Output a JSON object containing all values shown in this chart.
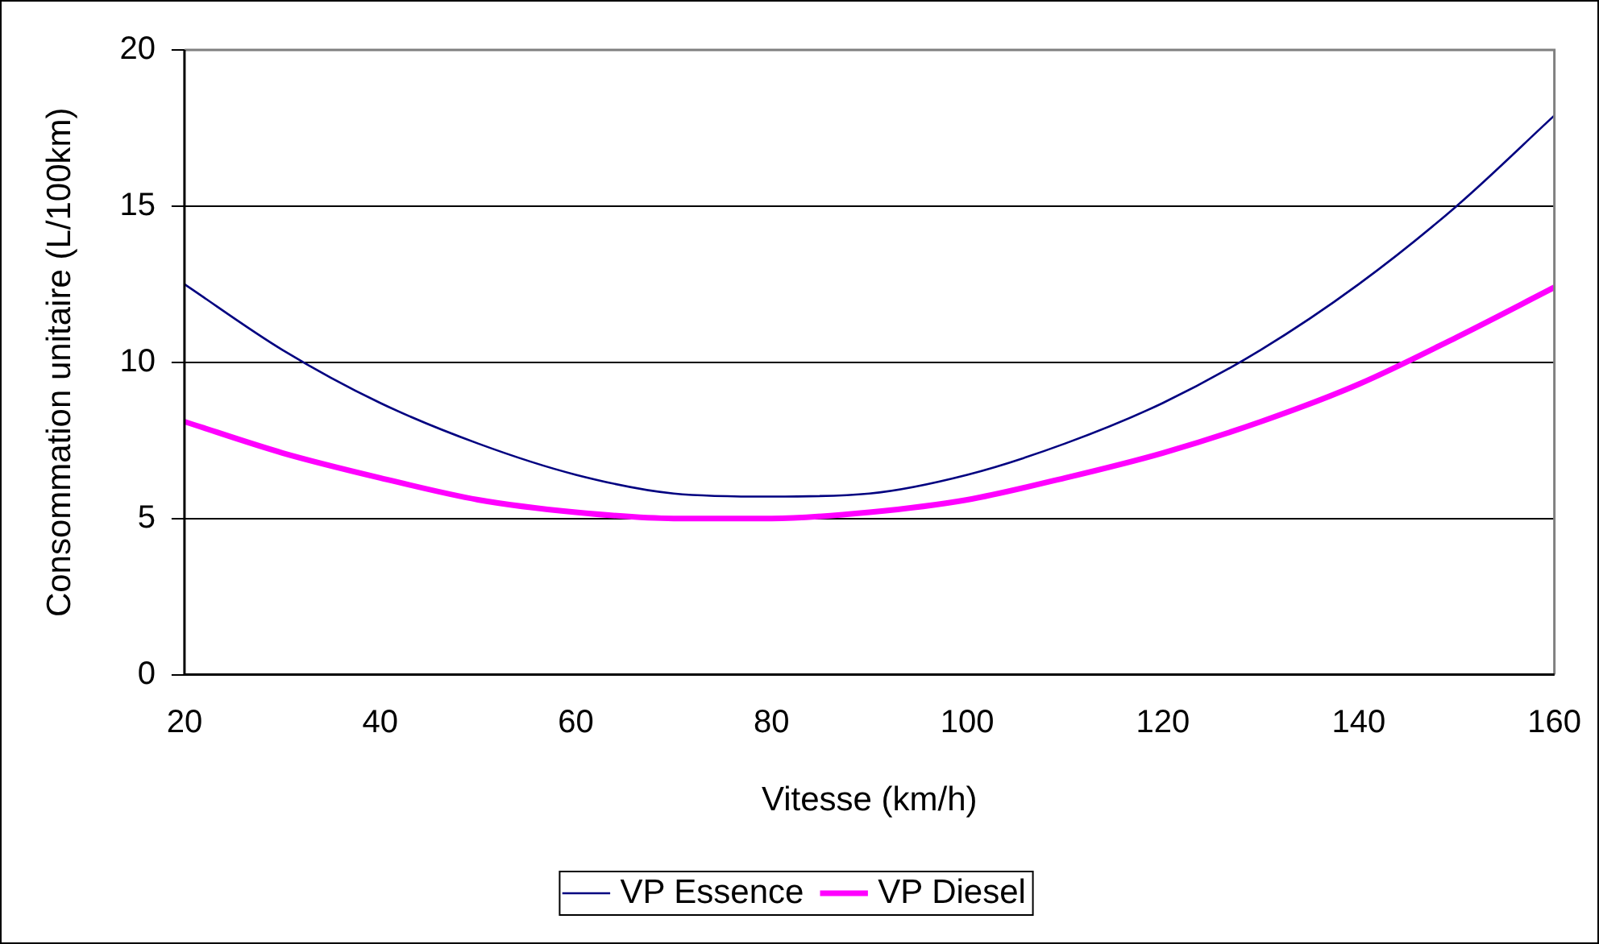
{
  "chart_data": {
    "type": "line",
    "xlabel": "Vitesse (km/h)",
    "ylabel": "Consommation unitaire (L/100km)",
    "x": [
      20,
      30,
      40,
      50,
      60,
      70,
      80,
      90,
      100,
      110,
      120,
      130,
      140,
      150,
      160
    ],
    "series": [
      {
        "name": "VP Essence",
        "color": "#000080",
        "values": [
          12.5,
          10.4,
          8.7,
          7.4,
          6.4,
          5.8,
          5.7,
          5.8,
          6.4,
          7.4,
          8.7,
          10.4,
          12.5,
          15.0,
          17.9
        ]
      },
      {
        "name": "VP Diesel",
        "color": "#ff00ff",
        "values": [
          8.1,
          7.1,
          6.3,
          5.6,
          5.2,
          5.0,
          5.0,
          5.2,
          5.6,
          6.3,
          7.1,
          8.1,
          9.3,
          10.8,
          12.4
        ]
      }
    ],
    "xlim": [
      20,
      160
    ],
    "xticks": [
      20,
      40,
      60,
      80,
      100,
      120,
      140,
      160
    ],
    "ylim": [
      0,
      20
    ],
    "yticks": [
      0,
      5,
      10,
      15,
      20
    ],
    "grid": "y",
    "legend": "bottom",
    "marker": "none",
    "line_style": "solid"
  }
}
